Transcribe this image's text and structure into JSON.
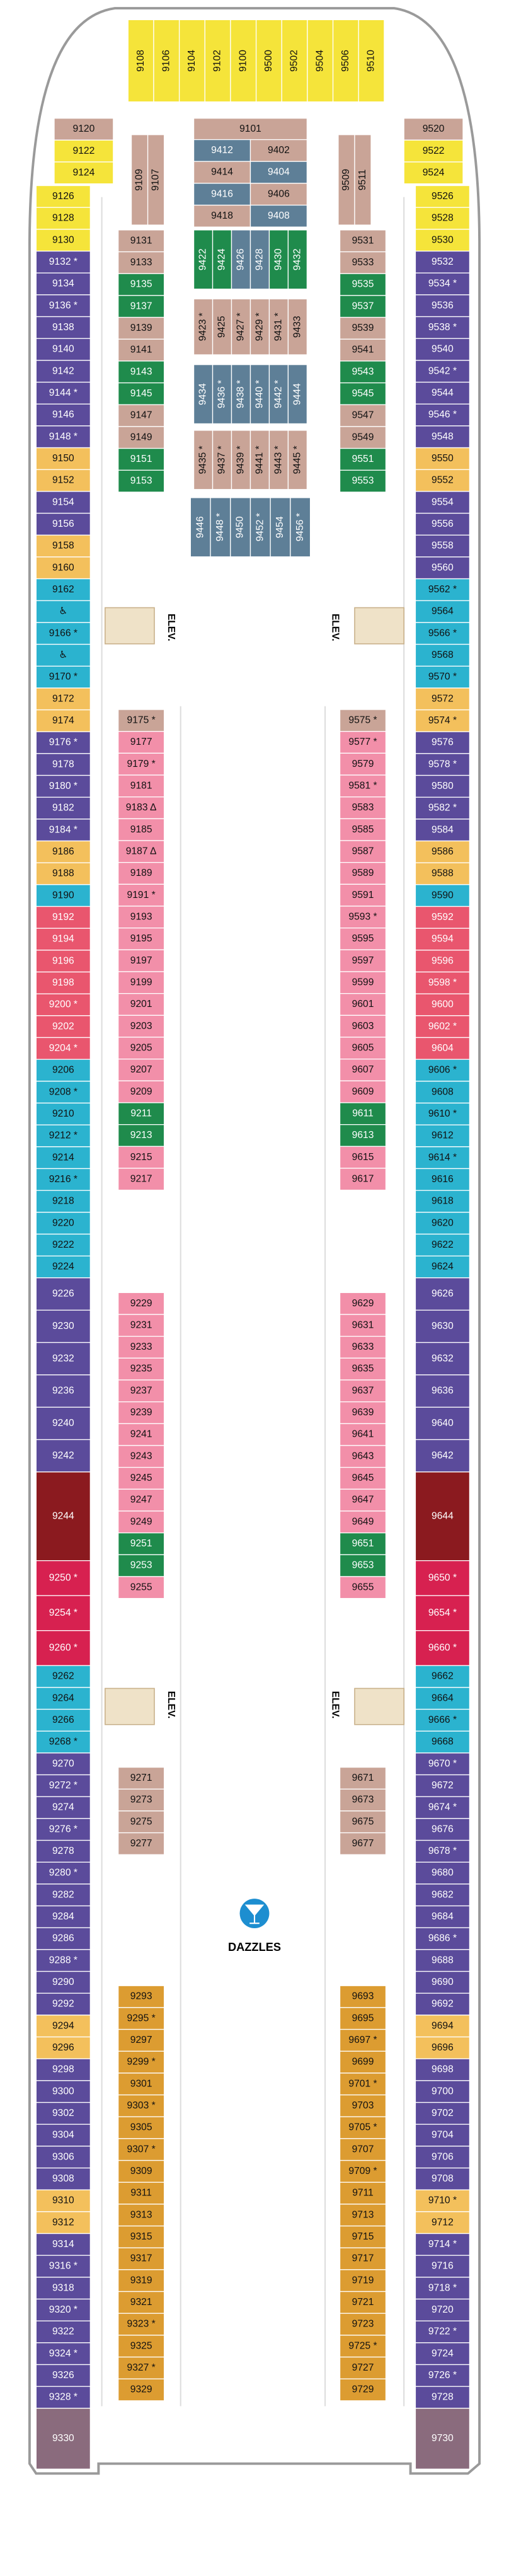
{
  "deck": {
    "columns": [
      [
        {
          "color": "#f5e43a",
          "cabins": [
            "9126",
            "9128",
            "9130"
          ]
        },
        {
          "color": "#5b4b9b",
          "cabins": [
            "9132 *",
            "9134",
            "9136 *",
            "9138",
            "9140",
            "9142",
            "9144 *",
            "9146",
            "9148 *"
          ]
        },
        {
          "color": "#f3c05c",
          "cabins": [
            "9150",
            "9152"
          ]
        },
        {
          "color": "#5b4b9b",
          "cabins": [
            "9154",
            "9156"
          ]
        },
        {
          "color": "#f3c05c",
          "cabins": [
            "9158",
            "9160"
          ]
        },
        {
          "color": "#2bb3cf",
          "cabins": [
            "9162",
            "♿",
            "9166 *",
            "♿",
            "9170 *"
          ]
        },
        {
          "color": "#f3c05c",
          "cabins": [
            "9172",
            "9174"
          ]
        },
        {
          "color": "#5b4b9b",
          "cabins": [
            "9176 *",
            "9178",
            "9180 *",
            "9182",
            "9184 *"
          ]
        },
        {
          "color": "#f3c05c",
          "cabins": [
            "9186",
            "9188"
          ]
        },
        {
          "color": "#2bb3cf",
          "cabins": [
            "9190"
          ]
        },
        {
          "color": "#e9566e",
          "cabins": [
            "9192",
            "9194",
            "9196",
            "9198",
            "9200 *",
            "9202",
            "9204 *"
          ]
        },
        {
          "color": "#2bb3cf",
          "cabins": [
            "9206",
            "9208 *",
            "9210",
            "9212 *",
            "9214",
            "9216 *",
            "9218",
            "9220",
            "9222",
            "9224"
          ]
        },
        {
          "color": "#5b4b9b",
          "cabins": [
            "9226",
            "9230",
            "9232",
            "9236",
            "9240",
            "9242"
          ]
        },
        {
          "color": "#8b1a1f",
          "cabins": [
            "9244"
          ]
        },
        {
          "color": "#d72150",
          "cabins": [
            "9250 *",
            "9254 *",
            "9260 *"
          ]
        },
        {
          "color": "#2bb3cf",
          "cabins": [
            "9262",
            "9264",
            "9266",
            "9268 *"
          ]
        },
        {
          "color": "#5b4b9b",
          "cabins": [
            "9270",
            "9272 *",
            "9274",
            "9276 *",
            "9278",
            "9280 *",
            "9282",
            "9284",
            "9286",
            "9288 *",
            "9290",
            "9292"
          ]
        },
        {
          "color": "#f3c05c",
          "cabins": [
            "9294",
            "9296"
          ]
        },
        {
          "color": "#5b4b9b",
          "cabins": [
            "9298",
            "9300",
            "9302",
            "9304",
            "9306",
            "9308"
          ]
        },
        {
          "color": "#f3c05c",
          "cabins": [
            "9310",
            "9312"
          ]
        },
        {
          "color": "#5b4b9b",
          "cabins": [
            "9314",
            "9316 *",
            "9318",
            "9320 *",
            "9322",
            "9324 *",
            "9326",
            "9328 *"
          ]
        },
        {
          "color": "#8a6b7d",
          "cabins": [
            "9330"
          ]
        }
      ],
      [
        {
          "color": "#f5e43a",
          "cabins": [
            "9526",
            "9528",
            "9530"
          ]
        },
        {
          "color": "#5b4b9b",
          "cabins": [
            "9532",
            "9534 *",
            "9536",
            "9538 *",
            "9540",
            "9542 *",
            "9544",
            "9546 *",
            "9548"
          ]
        },
        {
          "color": "#f3c05c",
          "cabins": [
            "9550",
            "9552"
          ]
        },
        {
          "color": "#5b4b9b",
          "cabins": [
            "9554",
            "9556",
            "9558",
            "9560"
          ]
        },
        {
          "color": "#2bb3cf",
          "cabins": [
            "9562 *",
            "9564",
            "9566 *",
            "9568",
            "9570 *"
          ]
        },
        {
          "color": "#f3c05c",
          "cabins": [
            "9572",
            "9574 *"
          ]
        },
        {
          "color": "#5b4b9b",
          "cabins": [
            "9576",
            "9578 *",
            "9580",
            "9582 *",
            "9584"
          ]
        },
        {
          "color": "#f3c05c",
          "cabins": [
            "9586",
            "9588"
          ]
        },
        {
          "color": "#2bb3cf",
          "cabins": [
            "9590"
          ]
        },
        {
          "color": "#e9566e",
          "cabins": [
            "9592",
            "9594",
            "9596",
            "9598 *",
            "9600",
            "9602 *",
            "9604"
          ]
        },
        {
          "color": "#2bb3cf",
          "cabins": [
            "9606 *",
            "9608",
            "9610 *",
            "9612",
            "9614 *",
            "9616",
            "9618",
            "9620",
            "9622",
            "9624"
          ]
        },
        {
          "color": "#5b4b9b",
          "cabins": [
            "9626",
            "9630",
            "9632",
            "9636",
            "9640",
            "9642"
          ]
        },
        {
          "color": "#8b1a1f",
          "cabins": [
            "9644"
          ]
        },
        {
          "color": "#d72150",
          "cabins": [
            "9650 *",
            "9654 *",
            "9660 *"
          ]
        },
        {
          "color": "#2bb3cf",
          "cabins": [
            "9662",
            "9664",
            "9666 *",
            "9668"
          ]
        },
        {
          "color": "#5b4b9b",
          "cabins": [
            "9670 *",
            "9672",
            "9674 *",
            "9676",
            "9678 *",
            "9680",
            "9682",
            "9684",
            "9686 *",
            "9688",
            "9690",
            "9692"
          ]
        },
        {
          "color": "#f3c05c",
          "cabins": [
            "9694",
            "9696"
          ]
        },
        {
          "color": "#5b4b9b",
          "cabins": [
            "9698",
            "9700",
            "9702",
            "9704",
            "9706",
            "9708"
          ]
        },
        {
          "color": "#f3c05c",
          "cabins": [
            "9710 *",
            "9712"
          ]
        },
        {
          "color": "#5b4b9b",
          "cabins": [
            "9714 *",
            "9716",
            "9718 *",
            "9720",
            "9722 *",
            "9724",
            "9726 *",
            "9728"
          ]
        },
        {
          "color": "#8a6b7d",
          "cabins": [
            "9730"
          ]
        }
      ],
      [
        {
          "color": "#c9a497",
          "cabins": [
            "9131",
            "9133"
          ]
        },
        {
          "color": "#1f8b4c",
          "cabins": [
            "9135",
            "9137"
          ]
        },
        {
          "color": "#c9a497",
          "cabins": [
            "9139",
            "9141"
          ]
        },
        {
          "color": "#1f8b4c",
          "cabins": [
            "9143",
            "9145"
          ]
        },
        {
          "color": "#c9a497",
          "cabins": [
            "9147",
            "9149"
          ]
        },
        {
          "color": "#1f8b4c",
          "cabins": [
            "9151",
            "9153"
          ]
        }
      ],
      [
        {
          "color": "#c9a497",
          "cabins": [
            "9531",
            "9533"
          ]
        },
        {
          "color": "#1f8b4c",
          "cabins": [
            "9535",
            "9537"
          ]
        },
        {
          "color": "#c9a497",
          "cabins": [
            "9539",
            "9541"
          ]
        },
        {
          "color": "#1f8b4c",
          "cabins": [
            "9543",
            "9545"
          ]
        },
        {
          "color": "#c9a497",
          "cabins": [
            "9547",
            "9549"
          ]
        },
        {
          "color": "#1f8b4c",
          "cabins": [
            "9551",
            "9553"
          ]
        }
      ],
      [
        {
          "color": "#c9a497",
          "cabins": [
            "9175 *"
          ]
        },
        {
          "color": "#f28fa9",
          "cabins": [
            "9177",
            "9179 *",
            "9181",
            "9183 Δ",
            "9185",
            "9187 Δ",
            "9189",
            "9191 *",
            "9193",
            "9195",
            "9197",
            "9199",
            "9201",
            "9203",
            "9205",
            "9207",
            "9209"
          ]
        },
        {
          "color": "#1f8b4c",
          "cabins": [
            "9211",
            "9213"
          ]
        },
        {
          "color": "#f28fa9",
          "cabins": [
            "9215",
            "9217"
          ]
        }
      ],
      [
        {
          "color": "#c9a497",
          "cabins": [
            "9575 *"
          ]
        },
        {
          "color": "#f28fa9",
          "cabins": [
            "9577 *",
            "9579",
            "9581 *",
            "9583",
            "9585",
            "9587",
            "9589",
            "9591",
            "9593 *",
            "9595",
            "9597",
            "9599",
            "9601",
            "9603",
            "9605",
            "9607",
            "9609"
          ]
        },
        {
          "color": "#1f8b4c",
          "cabins": [
            "9611",
            "9613"
          ]
        },
        {
          "color": "#f28fa9",
          "cabins": [
            "9615",
            "9617"
          ]
        }
      ],
      [
        {
          "color": "#f28fa9",
          "cabins": [
            "9229",
            "9231",
            "9233",
            "9235",
            "9237",
            "9239",
            "9241",
            "9243",
            "9245",
            "9247",
            "9249"
          ]
        },
        {
          "color": "#1f8b4c",
          "cabins": [
            "9251",
            "9253"
          ]
        },
        {
          "color": "#f28fa9",
          "cabins": [
            "9255"
          ]
        }
      ],
      [
        {
          "color": "#f28fa9",
          "cabins": [
            "9629",
            "9631",
            "9633",
            "9635",
            "9637",
            "9639",
            "9641",
            "9643",
            "9645",
            "9647",
            "9649"
          ]
        },
        {
          "color": "#1f8b4c",
          "cabins": [
            "9651",
            "9653"
          ]
        },
        {
          "color": "#f28fa9",
          "cabins": [
            "9655"
          ]
        }
      ],
      [
        {
          "color": "#c9a497",
          "cabins": [
            "9271",
            "9273",
            "9275",
            "9277"
          ]
        }
      ],
      [
        {
          "color": "#c9a497",
          "cabins": [
            "9671",
            "9673",
            "9675",
            "9677"
          ]
        }
      ],
      [
        {
          "color": "#dc9c31",
          "cabins": [
            "9293",
            "9295 *",
            "9297",
            "9299 *",
            "9301",
            "9303 *",
            "9305",
            "9307 *",
            "9309",
            "9311",
            "9313",
            "9315",
            "9317",
            "9319",
            "9321",
            "9323 *",
            "9325",
            "9327 *",
            "9329"
          ]
        }
      ],
      [
        {
          "color": "#dc9c31",
          "cabins": [
            "9693",
            "9695",
            "9697 *",
            "9699",
            "9701 *",
            "9703",
            "9705 *",
            "9707",
            "9709 *",
            "9711",
            "9713",
            "9715",
            "9717",
            "9719",
            "9721",
            "9723",
            "9725 *",
            "9727",
            "9729"
          ]
        }
      ],
      [
        {
          "color": "#c9a497",
          "cabins": [
            "9120"
          ]
        },
        {
          "color": "#f5e43a",
          "cabins": [
            "9122",
            "9124"
          ]
        }
      ],
      [
        {
          "color": "#c9a497",
          "cabins": [
            "9520"
          ]
        },
        {
          "color": "#f5e43a",
          "cabins": [
            "9522",
            "9524"
          ]
        }
      ],
      [
        {
          "color": "#c9a497",
          "cabins": [
            "9101"
          ]
        }
      ]
    ],
    "blocks": [
      {
        "color": "#f5e43a",
        "cabins": [
          "9108",
          "9106",
          "9104",
          "9102",
          "9100",
          "9500",
          "9502",
          "9504",
          "9506",
          "9510"
        ]
      },
      {
        "color": "#c9a497",
        "cabins": [
          "9109",
          "9107"
        ]
      },
      {
        "color": "#c9a497",
        "cabins": [
          "9509",
          "9511"
        ]
      },
      {
        "colors": [
          "#5e7f97",
          "#c9a497"
        ],
        "cabins": [
          "9412",
          "9402"
        ]
      },
      {
        "colors": [
          "#c9a497",
          "#5e7f97"
        ],
        "cabins": [
          "9414",
          "9404"
        ]
      },
      {
        "colors": [
          "#5e7f97",
          "#c9a497"
        ],
        "cabins": [
          "9416",
          "9406"
        ]
      },
      {
        "colors": [
          "#c9a497",
          "#5e7f97"
        ],
        "cabins": [
          "9418",
          "9408"
        ]
      },
      {
        "colors": [
          "#1f8b4c",
          "#1f8b4c",
          "#5e7f97",
          "#5e7f97",
          "#1f8b4c",
          "#1f8b4c"
        ],
        "cabins": [
          "9422",
          "9424",
          "9426",
          "9428",
          "9430",
          "9432"
        ]
      },
      {
        "color": "#c9a497",
        "cabins": [
          "9423 *",
          "9425",
          "9427 *",
          "9429 *",
          "9431 *",
          "9433"
        ]
      },
      {
        "color": "#5e7f97",
        "cabins": [
          "9434",
          "9436 *",
          "9438 *",
          "9440 *",
          "9442 *",
          "9444"
        ]
      },
      {
        "color": "#c9a497",
        "cabins": [
          "9435 *",
          "9437 *",
          "9439 *",
          "9441 *",
          "9443 *",
          "9445 *"
        ]
      },
      {
        "color": "#5e7f97",
        "cabins": [
          "9446",
          "9448 *",
          "9450",
          "9452 *",
          "9454",
          "9456 *"
        ]
      }
    ],
    "elevators": [
      "ELEV.",
      "ELEV.",
      "ELEV.",
      "ELEV."
    ],
    "venue": "DAZZLES"
  }
}
